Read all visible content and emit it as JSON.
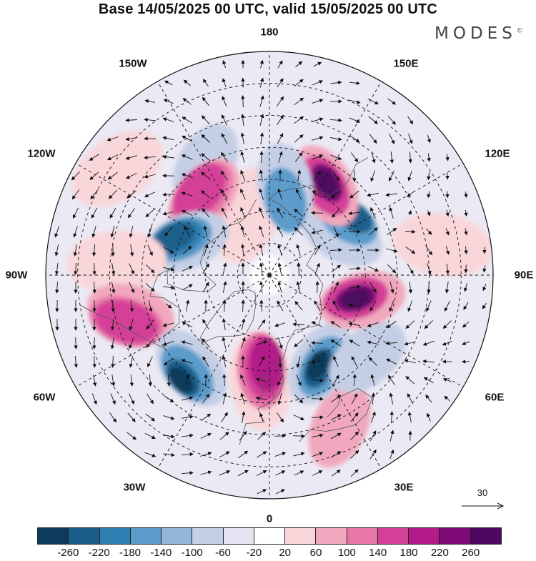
{
  "title": "Base 14/05/2025 00 UTC, valid 15/05/2025 00 UTC",
  "brand": "MODES",
  "brand_mark": "©",
  "longitude_labels": {
    "top": "180",
    "bottom": "0",
    "left": "90W",
    "right": "90E",
    "upper_left_1": "150W",
    "upper_left_2": "120W",
    "upper_right_1": "150E",
    "upper_right_2": "120E",
    "lower_left_1": "60W",
    "lower_left_2": "30W",
    "lower_right_1": "60E",
    "lower_right_2": "30E"
  },
  "wind_reference": {
    "value": "30",
    "icon": "arrow-right-icon"
  },
  "colorbar": {
    "colors": [
      "#0d3b5c",
      "#1a5f8a",
      "#2f7fb2",
      "#5c9ccb",
      "#93b7da",
      "#c4cfe6",
      "#e6e4f2",
      "#ffffff",
      "#f9d6d9",
      "#f1a8be",
      "#e777a8",
      "#d43f97",
      "#b21b88",
      "#7d0a76",
      "#4e0861"
    ],
    "ticks": [
      "-260",
      "-220",
      "-180",
      "-140",
      "-100",
      "-60",
      "-20",
      "20",
      "60",
      "100",
      "140",
      "180",
      "220",
      "260"
    ]
  },
  "map": {
    "projection": "north-polar-stereographic",
    "field": "geopotential anomaly with wind vectors",
    "blobs": [
      {
        "c": "#c4cfe6",
        "lon": -150,
        "lat": 50
      },
      {
        "c": "#f9d6d9",
        "lon": -160,
        "lat": 70
      },
      {
        "c": "#f1a8be",
        "lon": -140,
        "lat": 58
      },
      {
        "c": "#e777a8",
        "lon": -140,
        "lat": 57
      },
      {
        "c": "#d43f97",
        "lon": -140,
        "lat": 56
      },
      {
        "c": "#c4cfe6",
        "lon": -112,
        "lat": 62
      },
      {
        "c": "#5c9ccb",
        "lon": -112,
        "lat": 60
      },
      {
        "c": "#2f7fb2",
        "lon": -112,
        "lat": 59
      },
      {
        "c": "#1a5f8a",
        "lon": -112,
        "lat": 58
      },
      {
        "c": "#f9d6d9",
        "lon": -95,
        "lat": 42
      },
      {
        "c": "#f1a8be",
        "lon": -75,
        "lat": 45
      },
      {
        "c": "#e777a8",
        "lon": -72,
        "lat": 43
      },
      {
        "c": "#d43f97",
        "lon": -72,
        "lat": 43
      },
      {
        "c": "#c4cfe6",
        "lon": -40,
        "lat": 52
      },
      {
        "c": "#5c9ccb",
        "lon": -40,
        "lat": 50
      },
      {
        "c": "#1a5f8a",
        "lon": -40,
        "lat": 48
      },
      {
        "c": "#0d3b5c",
        "lon": -40,
        "lat": 47
      },
      {
        "c": "#f9d6d9",
        "lon": -5,
        "lat": 57
      },
      {
        "c": "#e777a8",
        "lon": -5,
        "lat": 60
      },
      {
        "c": "#d43f97",
        "lon": -3,
        "lat": 61
      },
      {
        "c": "#b21b88",
        "lon": -2,
        "lat": 62
      },
      {
        "c": "#f1a8be",
        "lon": 25,
        "lat": 38
      },
      {
        "c": "#c4cfe6",
        "lon": 30,
        "lat": 58
      },
      {
        "c": "#5c9ccb",
        "lon": 30,
        "lat": 57
      },
      {
        "c": "#1a5f8a",
        "lon": 28,
        "lat": 57
      },
      {
        "c": "#0d3b5c",
        "lon": 28,
        "lat": 58
      },
      {
        "c": "#c4cfe6",
        "lon": 50,
        "lat": 50
      },
      {
        "c": "#f1a8be",
        "lon": 75,
        "lat": 60
      },
      {
        "c": "#d43f97",
        "lon": 75,
        "lat": 62
      },
      {
        "c": "#7d0a76",
        "lon": 75,
        "lat": 62
      },
      {
        "c": "#4e0861",
        "lon": 75,
        "lat": 62
      },
      {
        "c": "#c4cfe6",
        "lon": 120,
        "lat": 64
      },
      {
        "c": "#5c9ccb",
        "lon": 125,
        "lat": 60
      },
      {
        "c": "#1a5f8a",
        "lon": 125,
        "lat": 58
      },
      {
        "c": "#f1a8be",
        "lon": 148,
        "lat": 57
      },
      {
        "c": "#d43f97",
        "lon": 148,
        "lat": 57
      },
      {
        "c": "#7d0a76",
        "lon": 148,
        "lat": 56
      },
      {
        "c": "#4e0861",
        "lon": 148,
        "lat": 56
      },
      {
        "c": "#c4cfe6",
        "lon": 170,
        "lat": 62
      },
      {
        "c": "#5c9ccb",
        "lon": 168,
        "lat": 66
      },
      {
        "c": "#f9d6d9",
        "lon": -125,
        "lat": 32
      },
      {
        "c": "#f9d6d9",
        "lon": 100,
        "lat": 35
      }
    ]
  }
}
